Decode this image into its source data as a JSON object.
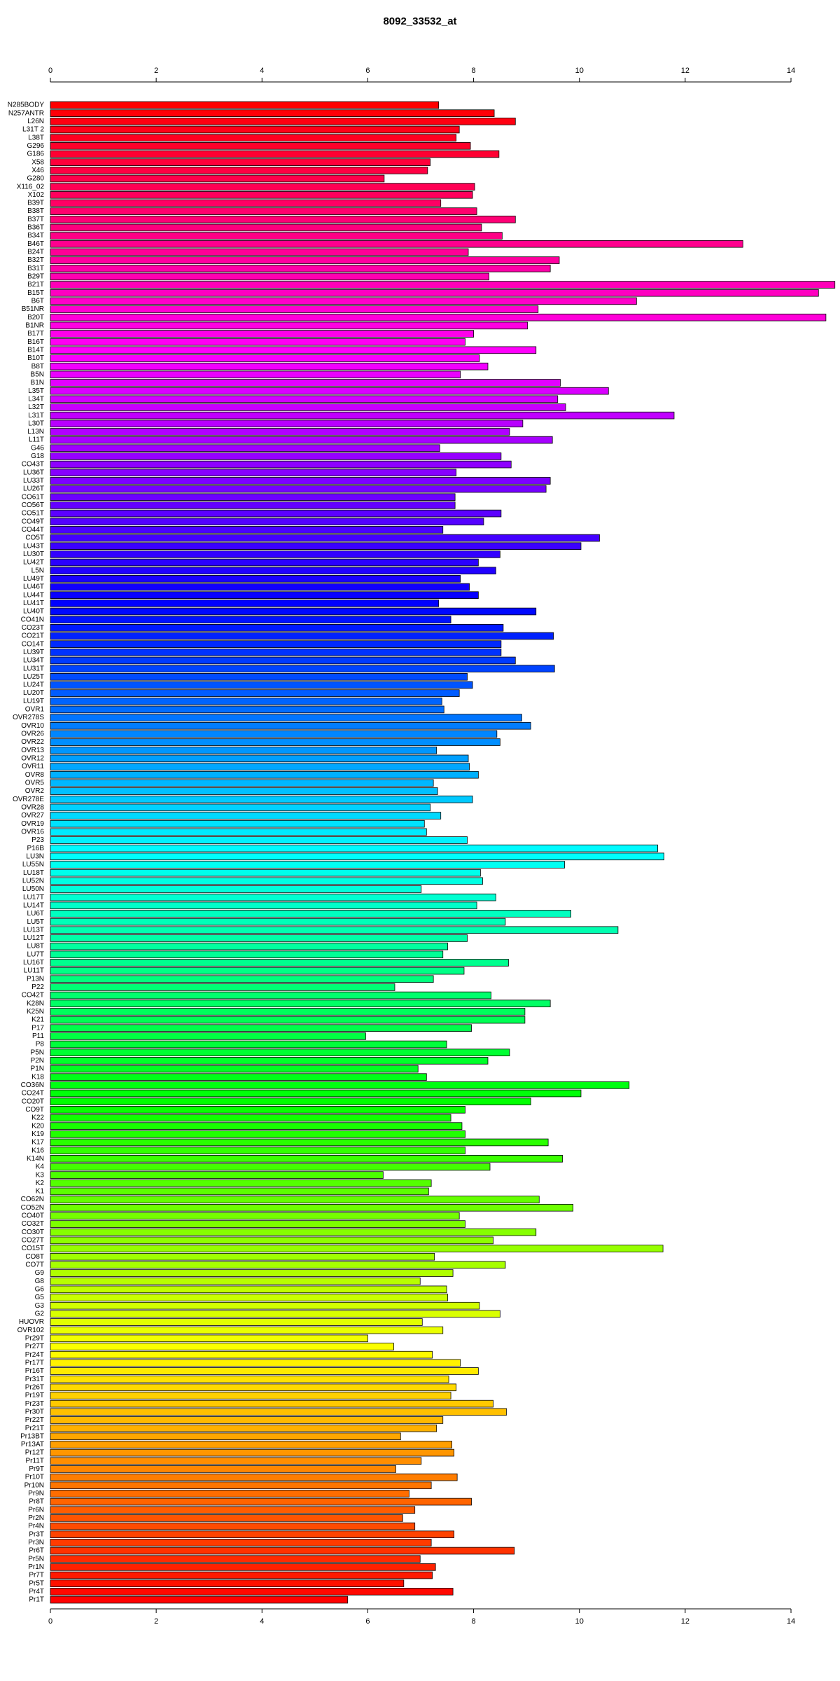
{
  "chart_data": {
    "type": "bar",
    "orientation": "horizontal",
    "title": "8092_33532_at",
    "categories": [
      "N285BODY",
      "N257ANTR",
      "L26N",
      "L31T 2",
      "L38T",
      "G296",
      "G186",
      "X58",
      "X46",
      "G280",
      "X116_02",
      "X102",
      "B39T",
      "B38T",
      "B37T",
      "B36T",
      "B34T",
      "B46T",
      "B24T",
      "B32T",
      "B31T",
      "B29T",
      "B21T",
      "B15T",
      "B6T",
      "B51NR",
      "B20T",
      "B1NR",
      "B17T",
      "B16T",
      "B14T",
      "B10T",
      "B8T",
      "B5N",
      "B1N",
      "L35T",
      "L34T",
      "L32T",
      "L31T",
      "L30T",
      "L13N",
      "L11T",
      "G46",
      "G18",
      "CO43T",
      "LU36T",
      "LU33T",
      "LU26T",
      "CO61T",
      "CO56T",
      "CO51T",
      "CO49T",
      "CO44T",
      "CO5T",
      "LU43T",
      "LU30T",
      "LU42T",
      "L5N",
      "LU49T",
      "LU46T",
      "LU44T",
      "LU41T",
      "LU40T",
      "CO41N",
      "CO23T",
      "CO21T",
      "CO14T",
      "LU39T",
      "LU34T",
      "LU31T",
      "LU25T",
      "LU24T",
      "LU20T",
      "LU19T",
      "OVR1",
      "OVR278S",
      "OVR10",
      "OVR26",
      "OVR22",
      "OVR13",
      "OVR12",
      "OVR11",
      "OVR8",
      "OVR5",
      "OVR2",
      "OVR278E",
      "OVR28",
      "OVR27",
      "OVR19",
      "OVR16",
      "P23",
      "P16B",
      "LU3N",
      "LU55N",
      "LU18T",
      "LU52N",
      "LU50N",
      "LU17T",
      "LU14T",
      "LU6T",
      "LU5T",
      "LU13T",
      "LU12T",
      "LU8T",
      "LU7T",
      "LU16T",
      "LU11T",
      "P13N",
      "P22",
      "CO42T",
      "K28N",
      "K25N",
      "K21",
      "P17",
      "P11",
      "P8",
      "P5N",
      "P2N",
      "P1N",
      "K18",
      "CO36N",
      "CO24T",
      "CO20T",
      "CO9T",
      "K22",
      "K20",
      "K19",
      "K17",
      "K16",
      "K14N",
      "K4",
      "K3",
      "K2",
      "K1",
      "CO62N",
      "CO52N",
      "CO40T",
      "CO32T",
      "CO30T",
      "CO27T",
      "CO15T",
      "CO8T",
      "CO7T",
      "G9",
      "G8",
      "G6",
      "G5",
      "G3",
      "G2",
      "HUOVR",
      "OVR102",
      "Pr29T",
      "Pr27T",
      "Pr24T",
      "Pr17T",
      "Pr16T",
      "Pr31T",
      "Pr26T",
      "Pr19T",
      "Pr23T",
      "Pr30T",
      "Pr22T",
      "Pr21T",
      "Pr13BT",
      "Pr13AT",
      "Pr12T",
      "Pr11T",
      "Pr9T",
      "Pr10T",
      "Pr10N",
      "Pr9N",
      "Pr8T",
      "Pr6N",
      "Pr2N",
      "Pr4N",
      "Pr3T",
      "Pr3N",
      "Pr6T",
      "Pr5N",
      "Pr1N",
      "Pr7T",
      "Pr5T",
      "Pr4T",
      "Pr1T"
    ],
    "values": [
      7.34,
      8.39,
      8.79,
      7.73,
      7.67,
      7.94,
      8.48,
      7.18,
      7.13,
      6.31,
      8.02,
      7.98,
      7.38,
      8.06,
      8.79,
      8.15,
      8.54,
      13.09,
      7.9,
      9.62,
      9.45,
      8.29,
      14.83,
      14.52,
      11.08,
      9.22,
      14.66,
      9.02,
      8.0,
      7.84,
      9.18,
      8.11,
      8.27,
      7.75,
      9.64,
      10.55,
      9.59,
      9.74,
      11.79,
      8.93,
      8.68,
      9.49,
      7.36,
      8.52,
      8.71,
      7.67,
      9.45,
      9.37,
      7.65,
      7.65,
      8.52,
      8.19,
      7.42,
      10.38,
      10.03,
      8.5,
      8.09,
      8.42,
      7.75,
      7.92,
      8.09,
      7.34,
      9.18,
      7.57,
      8.56,
      9.51,
      8.52,
      8.52,
      8.79,
      9.53,
      7.88,
      7.98,
      7.73,
      7.4,
      7.44,
      8.91,
      9.08,
      8.44,
      8.5,
      7.3,
      7.9,
      7.92,
      8.09,
      7.24,
      7.32,
      7.98,
      7.18,
      7.38,
      7.07,
      7.11,
      7.88,
      11.48,
      11.6,
      9.72,
      8.13,
      8.17,
      7.01,
      8.42,
      8.06,
      9.84,
      8.6,
      10.73,
      7.88,
      7.51,
      7.42,
      8.66,
      7.82,
      7.24,
      6.51,
      8.33,
      9.45,
      8.97,
      8.97,
      7.96,
      5.96,
      7.49,
      8.68,
      8.27,
      6.95,
      7.11,
      10.94,
      10.03,
      9.08,
      7.84,
      7.57,
      7.78,
      7.84,
      9.41,
      7.84,
      9.68,
      8.31,
      6.29,
      7.2,
      7.15,
      9.24,
      9.88,
      7.73,
      7.84,
      9.18,
      8.37,
      11.58,
      7.26,
      8.6,
      7.61,
      6.99,
      7.49,
      7.51,
      8.11,
      8.5,
      7.03,
      7.42,
      6.0,
      6.49,
      7.22,
      7.75,
      8.09,
      7.53,
      7.67,
      7.57,
      8.37,
      8.62,
      7.42,
      7.3,
      6.62,
      7.59,
      7.63,
      7.01,
      6.53,
      7.69,
      7.2,
      6.78,
      7.96,
      6.89,
      6.66,
      6.89,
      7.63,
      7.2,
      8.77,
      6.99,
      7.28,
      7.22,
      6.68,
      7.61,
      5.62
    ],
    "colors": [
      "#ff0000",
      "#ff00ff",
      "#0000ff",
      "#00ffff",
      "#00ff00",
      "#ffff00",
      "#ff0000"
    ],
    "xlim": [
      0,
      14
    ],
    "xticks": [
      0,
      2,
      4,
      6,
      8,
      10,
      12,
      14
    ]
  }
}
